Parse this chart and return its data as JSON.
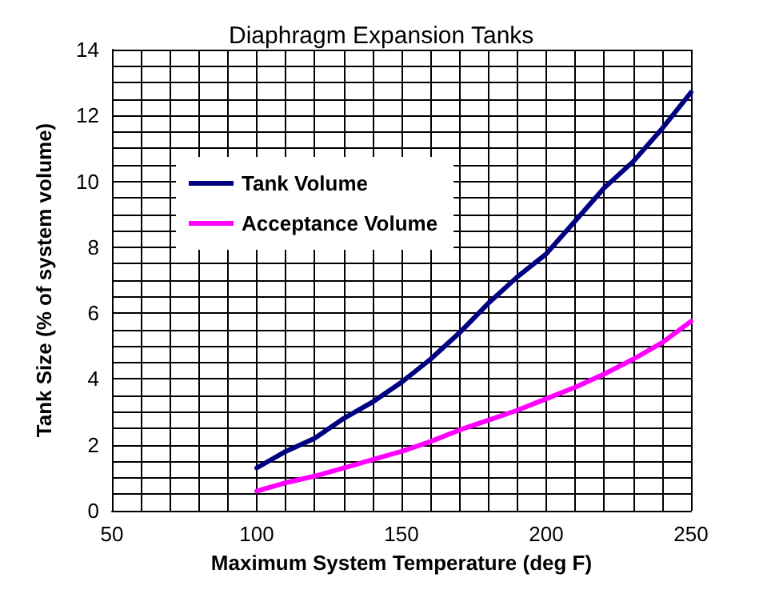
{
  "chart_data": {
    "type": "line",
    "title": "Diaphragm Expansion Tanks",
    "xlabel": "Maximum System Temperature (deg F)",
    "ylabel": "Tank Size (% of system volume)",
    "x": [
      100,
      110,
      120,
      130,
      140,
      150,
      160,
      170,
      180,
      190,
      200,
      210,
      220,
      230,
      240,
      250
    ],
    "series": [
      {
        "name": "Tank Volume",
        "color": "#000080",
        "values": [
          1.3,
          1.8,
          2.2,
          2.8,
          3.3,
          3.9,
          4.6,
          5.4,
          6.3,
          7.1,
          7.8,
          8.8,
          9.8,
          10.6,
          11.6,
          12.7
        ]
      },
      {
        "name": "Acceptance Volume",
        "color": "#ff00ff",
        "values": [
          0.6,
          0.85,
          1.05,
          1.3,
          1.55,
          1.8,
          2.1,
          2.45,
          2.75,
          3.05,
          3.4,
          3.75,
          4.15,
          4.6,
          5.1,
          5.75
        ]
      }
    ],
    "xlim": [
      50,
      250
    ],
    "xticks": [
      50,
      100,
      150,
      200,
      250
    ],
    "ylim": [
      0,
      14
    ],
    "yticks": [
      0,
      2,
      4,
      6,
      8,
      10,
      12,
      14
    ],
    "grid": true,
    "legend": "top left",
    "marker": "none",
    "line_style": "solid"
  }
}
